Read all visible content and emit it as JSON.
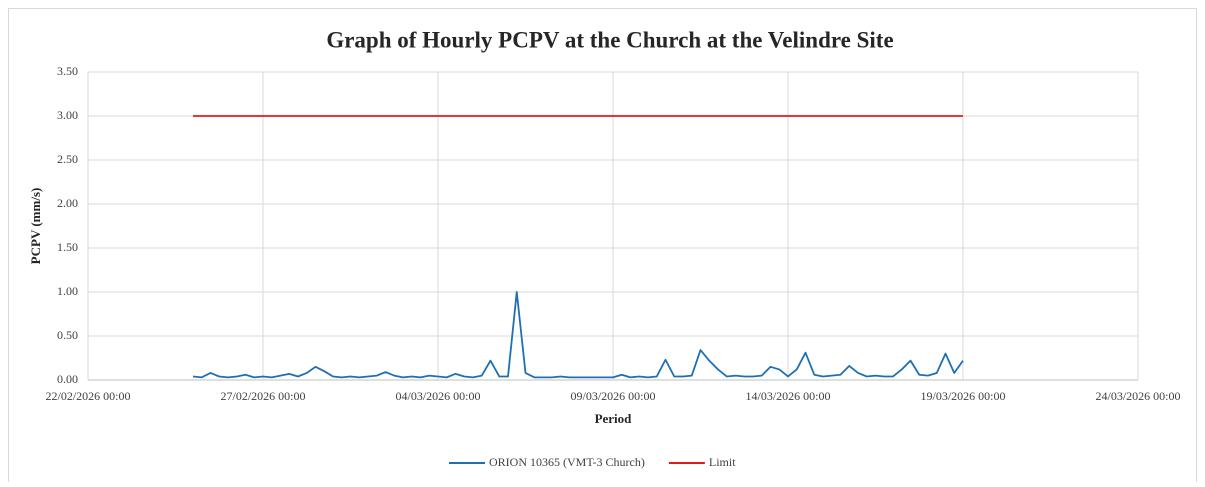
{
  "chart_data": {
    "type": "line",
    "title": "Graph of Hourly PCPV at the Church at the Velindre Site",
    "x_label": "Period",
    "y_label": "PCPV (mm/s)",
    "xlim": [
      "22/02/2026 00:00",
      "24/03/2026 00:00"
    ],
    "xticks": [
      "22/02/2026 00:00",
      "27/02/2026 00:00",
      "04/03/2026 00:00",
      "09/03/2026 00:00",
      "14/03/2026 00:00",
      "19/03/2026 00:00",
      "24/03/2026 00:00"
    ],
    "ylim": [
      0,
      3.5
    ],
    "yticks": [
      {
        "value": 0,
        "label": "0.00"
      },
      {
        "value": 0.5,
        "label": "0.50"
      },
      {
        "value": 1,
        "label": "1.00"
      },
      {
        "value": 1.5,
        "label": "1.50"
      },
      {
        "value": 2,
        "label": "2.00"
      },
      {
        "value": 2.5,
        "label": "2.50"
      },
      {
        "value": 3,
        "label": "3.00"
      },
      {
        "value": 3.5,
        "label": "3.50"
      }
    ],
    "grid": true,
    "legend": "bottom",
    "series": [
      {
        "name": "ORION 10365 (VMT-3 Church)",
        "color": "#1f6fb5",
        "x": [
          "25/02/2026 00:00",
          "25/02/2026 06:00",
          "25/02/2026 12:00",
          "25/02/2026 18:00",
          "26/02/2026 00:00",
          "26/02/2026 06:00",
          "26/02/2026 12:00",
          "26/02/2026 18:00",
          "27/02/2026 00:00",
          "27/02/2026 06:00",
          "27/02/2026 12:00",
          "27/02/2026 18:00",
          "28/02/2026 00:00",
          "28/02/2026 06:00",
          "28/02/2026 12:00",
          "28/02/2026 18:00",
          "01/03/2026 00:00",
          "01/03/2026 06:00",
          "01/03/2026 12:00",
          "01/03/2026 18:00",
          "02/03/2026 00:00",
          "02/03/2026 06:00",
          "02/03/2026 12:00",
          "02/03/2026 18:00",
          "03/03/2026 00:00",
          "03/03/2026 06:00",
          "03/03/2026 12:00",
          "03/03/2026 18:00",
          "04/03/2026 00:00",
          "04/03/2026 06:00",
          "04/03/2026 12:00",
          "04/03/2026 18:00",
          "05/03/2026 00:00",
          "05/03/2026 06:00",
          "05/03/2026 12:00",
          "05/03/2026 18:00",
          "06/03/2026 00:00",
          "06/03/2026 06:00",
          "06/03/2026 12:00",
          "06/03/2026 18:00",
          "07/03/2026 00:00",
          "07/03/2026 06:00",
          "07/03/2026 12:00",
          "07/03/2026 18:00",
          "08/03/2026 00:00",
          "08/03/2026 06:00",
          "08/03/2026 12:00",
          "08/03/2026 18:00",
          "09/03/2026 00:00",
          "09/03/2026 06:00",
          "09/03/2026 12:00",
          "09/03/2026 18:00",
          "10/03/2026 00:00",
          "10/03/2026 06:00",
          "10/03/2026 12:00",
          "10/03/2026 18:00",
          "11/03/2026 00:00",
          "11/03/2026 06:00",
          "11/03/2026 12:00",
          "11/03/2026 18:00",
          "12/03/2026 00:00",
          "12/03/2026 06:00",
          "12/03/2026 12:00",
          "12/03/2026 18:00",
          "13/03/2026 00:00",
          "13/03/2026 06:00",
          "13/03/2026 12:00",
          "13/03/2026 18:00",
          "14/03/2026 00:00",
          "14/03/2026 06:00",
          "14/03/2026 12:00",
          "14/03/2026 18:00",
          "15/03/2026 00:00",
          "15/03/2026 06:00",
          "15/03/2026 12:00",
          "15/03/2026 18:00",
          "16/03/2026 00:00",
          "16/03/2026 06:00",
          "16/03/2026 12:00",
          "16/03/2026 18:00",
          "17/03/2026 00:00",
          "17/03/2026 06:00",
          "17/03/2026 12:00",
          "17/03/2026 18:00",
          "18/03/2026 00:00",
          "18/03/2026 06:00",
          "18/03/2026 12:00",
          "18/03/2026 18:00",
          "19/03/2026 00:00"
        ],
        "values": [
          0.04,
          0.03,
          0.08,
          0.04,
          0.03,
          0.04,
          0.06,
          0.03,
          0.04,
          0.03,
          0.05,
          0.07,
          0.04,
          0.08,
          0.15,
          0.1,
          0.04,
          0.03,
          0.04,
          0.03,
          0.04,
          0.05,
          0.09,
          0.05,
          0.03,
          0.04,
          0.03,
          0.05,
          0.04,
          0.03,
          0.07,
          0.04,
          0.03,
          0.05,
          0.22,
          0.04,
          0.04,
          1.0,
          0.08,
          0.03,
          0.03,
          0.03,
          0.04,
          0.03,
          0.03,
          0.03,
          0.03,
          0.03,
          0.03,
          0.06,
          0.03,
          0.04,
          0.03,
          0.04,
          0.23,
          0.04,
          0.04,
          0.05,
          0.34,
          0.22,
          0.12,
          0.04,
          0.05,
          0.04,
          0.04,
          0.05,
          0.15,
          0.12,
          0.04,
          0.12,
          0.31,
          0.06,
          0.04,
          0.05,
          0.06,
          0.16,
          0.08,
          0.04,
          0.05,
          0.04,
          0.04,
          0.12,
          0.22,
          0.06,
          0.05,
          0.08,
          0.3,
          0.08,
          0.22
        ]
      },
      {
        "name": "Limit",
        "color": "#e31a1c",
        "x": [
          "25/02/2026 00:00",
          "19/03/2026 00:00"
        ],
        "values": [
          3,
          3
        ]
      }
    ]
  }
}
